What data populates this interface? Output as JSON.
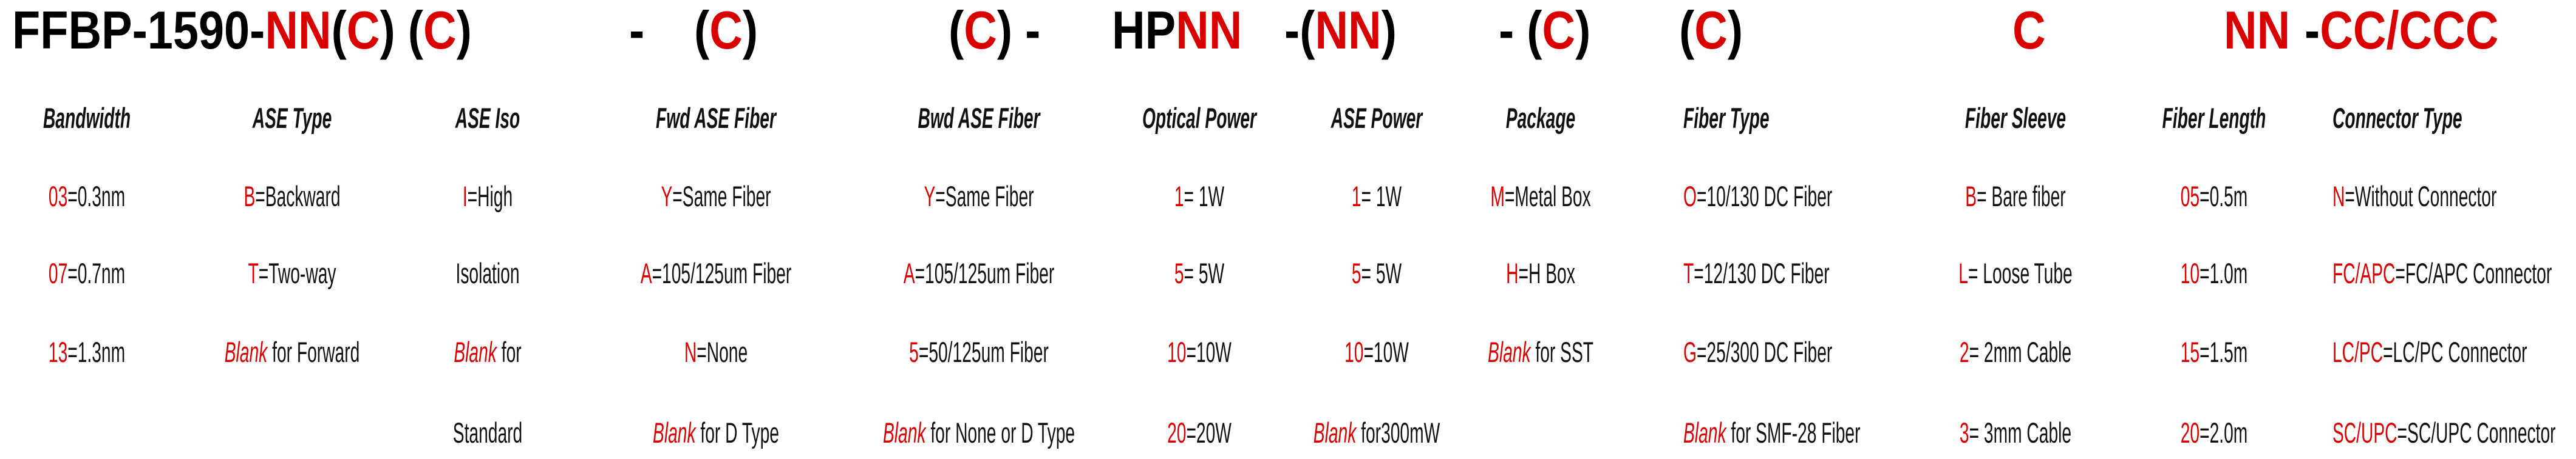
{
  "colors": {
    "code": "#d90000",
    "text": "#111111"
  },
  "title": {
    "segments": [
      {
        "parts": [
          {
            "t": "FFBP-1590-",
            "red": false
          },
          {
            "t": "NN",
            "red": true
          },
          {
            "t": "(",
            "red": false
          },
          {
            "t": "C",
            "red": true
          },
          {
            "t": ") (",
            "red": false
          },
          {
            "t": "C",
            "red": true
          },
          {
            "t": ")",
            "red": false
          }
        ]
      },
      {
        "parts": [
          {
            "t": "-",
            "red": false
          }
        ]
      },
      {
        "parts": [
          {
            "t": "(",
            "red": false
          },
          {
            "t": "C",
            "red": true
          },
          {
            "t": ")",
            "red": false
          }
        ]
      },
      {
        "parts": [
          {
            "t": "(",
            "red": false
          },
          {
            "t": "C",
            "red": true
          },
          {
            "t": ") -",
            "red": false
          }
        ]
      },
      {
        "parts": [
          {
            "t": "HP",
            "red": false
          },
          {
            "t": "NN",
            "red": true
          }
        ]
      },
      {
        "parts": [
          {
            "t": "-(",
            "red": false
          },
          {
            "t": "NN",
            "red": true
          },
          {
            "t": ")",
            "red": false
          }
        ]
      },
      {
        "parts": [
          {
            "t": "- (",
            "red": false
          },
          {
            "t": "C",
            "red": true
          },
          {
            "t": ")",
            "red": false
          }
        ]
      },
      {
        "parts": [
          {
            "t": "(",
            "red": false
          },
          {
            "t": "C",
            "red": true
          },
          {
            "t": ")",
            "red": false
          }
        ]
      },
      {
        "parts": [
          {
            "t": "C",
            "red": true
          }
        ]
      },
      {
        "parts": [
          {
            "t": "NN",
            "red": true
          }
        ]
      },
      {
        "parts": [
          {
            "t": "-",
            "red": false
          },
          {
            "t": "CC/CCC",
            "red": true
          }
        ]
      }
    ]
  },
  "columns": [
    {
      "header": "Bandwidth",
      "items": [
        {
          "code": "03",
          "text": "=0.3nm"
        },
        {
          "code": "07",
          "text": "=0.7nm"
        },
        {
          "code": "13",
          "text": "=1.3nm"
        }
      ]
    },
    {
      "header": "ASE Type",
      "items": [
        {
          "code": "B",
          "text": "=Backward"
        },
        {
          "code": "T",
          "text": "=Two-way"
        },
        {
          "code": "Blank",
          "text": " for Forward",
          "italic": true
        }
      ]
    },
    {
      "header": "ASE Iso",
      "items": [
        {
          "code": "I",
          "text": "=High"
        },
        {
          "code": "",
          "text": "Isolation"
        },
        {
          "code": "Blank",
          "text": " for",
          "italic": true
        },
        {
          "code": "",
          "text": "Standard"
        }
      ]
    },
    {
      "header": "Fwd ASE Fiber",
      "items": [
        {
          "code": "Y",
          "text": "=Same Fiber"
        },
        {
          "code": "A",
          "text": "=105/125um Fiber"
        },
        {
          "code": "N",
          "text": "=None"
        },
        {
          "code": "Blank",
          "text": " for D Type",
          "italic": true
        }
      ]
    },
    {
      "header": "Bwd ASE Fiber",
      "items": [
        {
          "code": "Y",
          "text": "=Same Fiber"
        },
        {
          "code": "A",
          "text": "=105/125um Fiber"
        },
        {
          "code": "5",
          "text": "=50/125um Fiber"
        },
        {
          "code": "Blank",
          "text": " for None or D Type",
          "italic": true
        }
      ]
    },
    {
      "header": "Optical Power",
      "items": [
        {
          "code": "1",
          "text": "= 1W"
        },
        {
          "code": "5",
          "text": "= 5W"
        },
        {
          "code": "10",
          "text": "=10W"
        },
        {
          "code": "20",
          "text": "=20W"
        }
      ]
    },
    {
      "header": "ASE Power",
      "items": [
        {
          "code": "1",
          "text": "= 1W"
        },
        {
          "code": "5",
          "text": "= 5W"
        },
        {
          "code": "10",
          "text": "=10W"
        },
        {
          "code": "Blank",
          "text": " for300mW",
          "italic": true
        }
      ]
    },
    {
      "header": "Package",
      "items": [
        {
          "code": "M",
          "text": "=Metal Box"
        },
        {
          "code": "H",
          "text": "=H Box"
        },
        {
          "code": "Blank",
          "text": " for SST",
          "italic": true
        }
      ]
    },
    {
      "header": "Fiber Type",
      "items": [
        {
          "code": "O",
          "text": "=10/130 DC Fiber"
        },
        {
          "code": "T",
          "text": "=12/130 DC Fiber"
        },
        {
          "code": "G",
          "text": "=25/300 DC Fiber"
        },
        {
          "code": "Blank",
          "text": " for SMF-28 Fiber",
          "italic": true
        }
      ]
    },
    {
      "header": "Fiber Sleeve",
      "items": [
        {
          "code": "B",
          "text": "= Bare fiber"
        },
        {
          "code": "L",
          "text": "= Loose Tube"
        },
        {
          "code": "2",
          "text": "= 2mm Cable"
        },
        {
          "code": "3",
          "text": "= 3mm Cable"
        }
      ]
    },
    {
      "header": "Fiber Length",
      "items": [
        {
          "code": "05",
          "text": "=0.5m"
        },
        {
          "code": "10",
          "text": "=1.0m"
        },
        {
          "code": "15",
          "text": "=1.5m"
        },
        {
          "code": "20",
          "text": "=2.0m"
        }
      ]
    },
    {
      "header": "Connector Type",
      "items": [
        {
          "code": "N",
          "text": "=Without Connector"
        },
        {
          "code": "FC/APC",
          "text": "=FC/APC Connector"
        },
        {
          "code": "LC/PC",
          "text": "=LC/PC Connector"
        },
        {
          "code": "SC/UPC",
          "text": "=SC/UPC Connector"
        }
      ]
    }
  ]
}
